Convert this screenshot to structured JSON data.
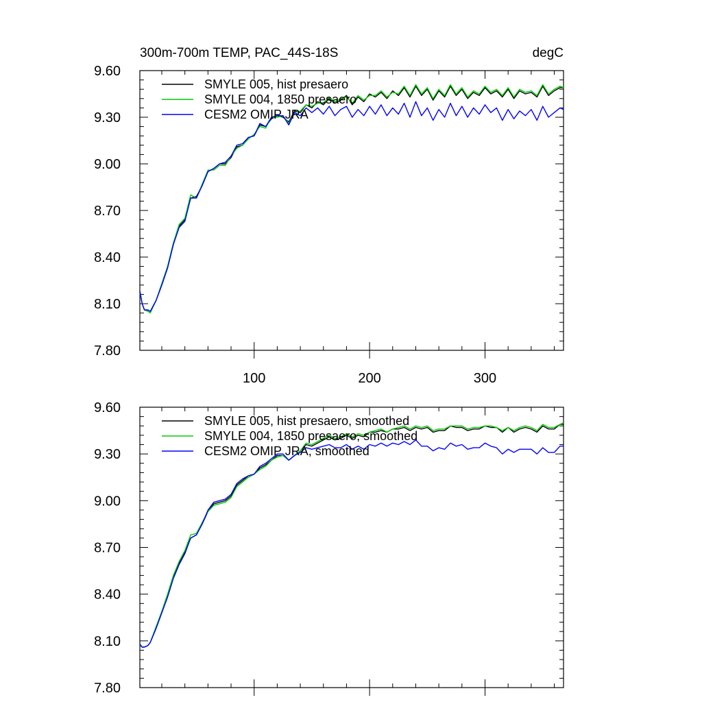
{
  "figure": {
    "title_left": "300m-700m TEMP, PAC_44S-18S",
    "title_right": "degC"
  },
  "chart_data": [
    {
      "type": "line",
      "title": "300m-700m TEMP, PAC_44S-18S",
      "units": "degC",
      "xlim": [
        1,
        368
      ],
      "ylim": [
        7.8,
        9.6
      ],
      "xticks": [
        100,
        200,
        300
      ],
      "xtick_labels": [
        "100",
        "200",
        "300"
      ],
      "yticks": [
        7.8,
        8.1,
        8.4,
        8.7,
        9.0,
        9.3,
        9.6
      ],
      "ytick_labels": [
        "7.80",
        "8.10",
        "8.40",
        "8.70",
        "9.00",
        "9.30",
        "9.60"
      ],
      "legend_position": "top-left",
      "grid": false,
      "series": [
        {
          "name": "SMYLE 005, hist presaero",
          "color": "#000000",
          "x": [
            1,
            3,
            5,
            8,
            10,
            15,
            20,
            25,
            30,
            35,
            40,
            45,
            50,
            55,
            60,
            65,
            70,
            75,
            80,
            85,
            90,
            95,
            100,
            105,
            110,
            115,
            120,
            125,
            130,
            135,
            140,
            145,
            150,
            155,
            160,
            165,
            170,
            175,
            180,
            185,
            190,
            195,
            200,
            205,
            210,
            215,
            220,
            225,
            230,
            235,
            240,
            245,
            250,
            255,
            260,
            265,
            270,
            275,
            280,
            285,
            290,
            295,
            300,
            305,
            310,
            315,
            320,
            325,
            330,
            335,
            340,
            345,
            350,
            355,
            360,
            365,
            368
          ],
          "y": [
            8.18,
            8.1,
            8.06,
            8.06,
            8.05,
            8.12,
            8.22,
            8.33,
            8.48,
            8.6,
            8.64,
            8.78,
            8.79,
            8.86,
            8.95,
            8.97,
            9.0,
            9.0,
            9.04,
            9.11,
            9.12,
            9.17,
            9.18,
            9.25,
            9.24,
            9.29,
            9.31,
            9.3,
            9.27,
            9.34,
            9.33,
            9.38,
            9.36,
            9.4,
            9.38,
            9.42,
            9.39,
            9.41,
            9.44,
            9.38,
            9.43,
            9.4,
            9.45,
            9.43,
            9.46,
            9.42,
            9.47,
            9.44,
            9.49,
            9.43,
            9.5,
            9.44,
            9.48,
            9.41,
            9.47,
            9.43,
            9.5,
            9.44,
            9.48,
            9.42,
            9.46,
            9.44,
            9.49,
            9.45,
            9.47,
            9.43,
            9.48,
            9.42,
            9.47,
            9.45,
            9.46,
            9.43,
            9.5,
            9.44,
            9.47,
            9.49,
            9.49
          ]
        },
        {
          "name": "SMYLE 004, 1850 presaero",
          "color": "#00cc00",
          "x": [
            1,
            3,
            5,
            8,
            10,
            15,
            20,
            25,
            30,
            35,
            40,
            45,
            50,
            55,
            60,
            65,
            70,
            75,
            80,
            85,
            90,
            95,
            100,
            105,
            110,
            115,
            120,
            125,
            130,
            135,
            140,
            145,
            150,
            155,
            160,
            165,
            170,
            175,
            180,
            185,
            190,
            195,
            200,
            205,
            210,
            215,
            220,
            225,
            230,
            235,
            240,
            245,
            250,
            255,
            260,
            265,
            270,
            275,
            280,
            285,
            290,
            295,
            300,
            305,
            310,
            315,
            320,
            325,
            330,
            335,
            340,
            345,
            350,
            355,
            360,
            365,
            368
          ],
          "y": [
            8.17,
            8.1,
            8.06,
            8.05,
            8.04,
            8.12,
            8.23,
            8.34,
            8.49,
            8.61,
            8.65,
            8.8,
            8.78,
            8.87,
            8.96,
            8.96,
            8.99,
            8.99,
            9.05,
            9.1,
            9.12,
            9.16,
            9.19,
            9.24,
            9.23,
            9.3,
            9.3,
            9.31,
            9.26,
            9.33,
            9.34,
            9.38,
            9.37,
            9.39,
            9.39,
            9.43,
            9.4,
            9.42,
            9.43,
            9.39,
            9.44,
            9.41,
            9.44,
            9.44,
            9.47,
            9.43,
            9.46,
            9.45,
            9.5,
            9.44,
            9.51,
            9.45,
            9.49,
            9.42,
            9.48,
            9.44,
            9.51,
            9.45,
            9.49,
            9.43,
            9.47,
            9.45,
            9.5,
            9.46,
            9.48,
            9.44,
            9.49,
            9.43,
            9.48,
            9.46,
            9.47,
            9.44,
            9.51,
            9.45,
            9.48,
            9.5,
            9.49
          ]
        },
        {
          "name": "CESM2 OMIP JRA",
          "color": "#0000ff",
          "x": [
            1,
            3,
            5,
            8,
            10,
            15,
            20,
            25,
            30,
            35,
            40,
            45,
            50,
            55,
            60,
            65,
            70,
            75,
            80,
            85,
            90,
            95,
            100,
            105,
            110,
            115,
            120,
            125,
            130,
            135,
            140,
            145,
            150,
            155,
            160,
            165,
            170,
            175,
            180,
            185,
            190,
            195,
            200,
            205,
            210,
            215,
            220,
            225,
            230,
            235,
            240,
            245,
            250,
            255,
            260,
            265,
            270,
            275,
            280,
            285,
            290,
            295,
            300,
            305,
            310,
            315,
            320,
            325,
            330,
            335,
            340,
            345,
            350,
            355,
            360,
            365,
            368
          ],
          "y": [
            8.18,
            8.1,
            8.06,
            8.06,
            8.05,
            8.12,
            8.22,
            8.33,
            8.48,
            8.59,
            8.63,
            8.78,
            8.78,
            8.86,
            8.95,
            8.97,
            9.0,
            9.01,
            9.05,
            9.12,
            9.13,
            9.17,
            9.18,
            9.26,
            9.24,
            9.3,
            9.31,
            9.31,
            9.25,
            9.33,
            9.31,
            9.36,
            9.33,
            9.36,
            9.32,
            9.37,
            9.31,
            9.35,
            9.37,
            9.3,
            9.35,
            9.31,
            9.37,
            9.32,
            9.38,
            9.31,
            9.36,
            9.32,
            9.39,
            9.3,
            9.4,
            9.31,
            9.36,
            9.28,
            9.35,
            9.3,
            9.39,
            9.31,
            9.37,
            9.3,
            9.36,
            9.32,
            9.38,
            9.33,
            9.36,
            9.28,
            9.35,
            9.29,
            9.34,
            9.31,
            9.35,
            9.28,
            9.37,
            9.3,
            9.33,
            9.36,
            9.35
          ]
        }
      ]
    },
    {
      "type": "line",
      "title": "",
      "xlim": [
        1,
        368
      ],
      "ylim": [
        7.8,
        9.6
      ],
      "xticks": [
        100,
        200,
        300
      ],
      "xtick_labels": [],
      "yticks": [
        7.8,
        8.1,
        8.4,
        8.7,
        9.0,
        9.3,
        9.6
      ],
      "ytick_labels": [
        "7.80",
        "8.10",
        "8.40",
        "8.70",
        "9.00",
        "9.30",
        "9.60"
      ],
      "legend_position": "top-left",
      "grid": false,
      "series": [
        {
          "name": "SMYLE 005, hist presaero, smoothed",
          "color": "#000000",
          "x": [
            1,
            3,
            5,
            8,
            10,
            15,
            20,
            25,
            30,
            35,
            40,
            45,
            50,
            55,
            60,
            65,
            70,
            75,
            80,
            85,
            90,
            95,
            100,
            105,
            110,
            115,
            120,
            125,
            130,
            135,
            140,
            145,
            150,
            155,
            160,
            165,
            170,
            175,
            180,
            185,
            190,
            195,
            200,
            205,
            210,
            215,
            220,
            225,
            230,
            235,
            240,
            245,
            250,
            255,
            260,
            265,
            270,
            275,
            280,
            285,
            290,
            295,
            300,
            305,
            310,
            315,
            320,
            325,
            330,
            335,
            340,
            345,
            350,
            355,
            360,
            365,
            368
          ],
          "y": [
            8.07,
            8.06,
            8.06,
            8.07,
            8.09,
            8.18,
            8.28,
            8.39,
            8.51,
            8.6,
            8.67,
            8.76,
            8.78,
            8.85,
            8.93,
            8.98,
            8.99,
            9.0,
            9.03,
            9.1,
            9.13,
            9.16,
            9.17,
            9.21,
            9.23,
            9.26,
            9.29,
            9.29,
            9.26,
            9.29,
            9.32,
            9.36,
            9.35,
            9.37,
            9.39,
            9.41,
            9.39,
            9.4,
            9.42,
            9.4,
            9.42,
            9.41,
            9.44,
            9.44,
            9.45,
            9.44,
            9.46,
            9.46,
            9.47,
            9.45,
            9.47,
            9.46,
            9.47,
            9.44,
            9.45,
            9.45,
            9.48,
            9.47,
            9.47,
            9.45,
            9.46,
            9.46,
            9.48,
            9.47,
            9.47,
            9.44,
            9.47,
            9.44,
            9.46,
            9.47,
            9.46,
            9.44,
            9.48,
            9.46,
            9.46,
            9.49,
            9.49
          ]
        },
        {
          "name": "SMYLE 004, 1850 presaero, smoothed",
          "color": "#00cc00",
          "x": [
            1,
            3,
            5,
            8,
            10,
            15,
            20,
            25,
            30,
            35,
            40,
            45,
            50,
            55,
            60,
            65,
            70,
            75,
            80,
            85,
            90,
            95,
            100,
            105,
            110,
            115,
            120,
            125,
            130,
            135,
            140,
            145,
            150,
            155,
            160,
            165,
            170,
            175,
            180,
            185,
            190,
            195,
            200,
            205,
            210,
            215,
            220,
            225,
            230,
            235,
            240,
            245,
            250,
            255,
            260,
            265,
            270,
            275,
            280,
            285,
            290,
            295,
            300,
            305,
            310,
            315,
            320,
            325,
            330,
            335,
            340,
            345,
            350,
            355,
            360,
            365,
            368
          ],
          "y": [
            8.07,
            8.06,
            8.06,
            8.07,
            8.09,
            8.19,
            8.29,
            8.4,
            8.52,
            8.61,
            8.68,
            8.78,
            8.79,
            8.86,
            8.93,
            8.97,
            8.98,
            8.99,
            9.02,
            9.09,
            9.12,
            9.15,
            9.17,
            9.2,
            9.22,
            9.26,
            9.28,
            9.29,
            9.26,
            9.29,
            9.32,
            9.37,
            9.36,
            9.38,
            9.4,
            9.42,
            9.4,
            9.41,
            9.43,
            9.41,
            9.43,
            9.42,
            9.44,
            9.45,
            9.46,
            9.44,
            9.46,
            9.47,
            9.48,
            9.46,
            9.48,
            9.47,
            9.48,
            9.45,
            9.46,
            9.46,
            9.48,
            9.48,
            9.48,
            9.46,
            9.47,
            9.47,
            9.48,
            9.48,
            9.47,
            9.45,
            9.47,
            9.45,
            9.47,
            9.48,
            9.47,
            9.45,
            9.49,
            9.47,
            9.47,
            9.49,
            9.5
          ]
        },
        {
          "name": "CESM2 OMIP JRA, smoothed",
          "color": "#0000ff",
          "x": [
            1,
            3,
            5,
            8,
            10,
            15,
            20,
            25,
            30,
            35,
            40,
            45,
            50,
            55,
            60,
            65,
            70,
            75,
            80,
            85,
            90,
            95,
            100,
            105,
            110,
            115,
            120,
            125,
            130,
            135,
            140,
            145,
            150,
            155,
            160,
            165,
            170,
            175,
            180,
            185,
            190,
            195,
            200,
            205,
            210,
            215,
            220,
            225,
            230,
            235,
            240,
            245,
            250,
            255,
            260,
            265,
            270,
            275,
            280,
            285,
            290,
            295,
            300,
            305,
            310,
            315,
            320,
            325,
            330,
            335,
            340,
            345,
            350,
            355,
            360,
            365,
            368
          ],
          "y": [
            8.08,
            8.06,
            8.06,
            8.07,
            8.09,
            8.18,
            8.28,
            8.38,
            8.5,
            8.59,
            8.66,
            8.76,
            8.78,
            8.85,
            8.94,
            8.99,
            9.0,
            9.01,
            9.04,
            9.11,
            9.14,
            9.16,
            9.17,
            9.22,
            9.24,
            9.27,
            9.3,
            9.3,
            9.26,
            9.29,
            9.31,
            9.34,
            9.33,
            9.34,
            9.35,
            9.36,
            9.34,
            9.34,
            9.36,
            9.33,
            9.35,
            9.33,
            9.36,
            9.35,
            9.37,
            9.35,
            9.37,
            9.36,
            9.38,
            9.36,
            9.39,
            9.35,
            9.35,
            9.32,
            9.34,
            9.33,
            9.37,
            9.35,
            9.36,
            9.33,
            9.34,
            9.34,
            9.37,
            9.35,
            9.34,
            9.3,
            9.33,
            9.31,
            9.33,
            9.33,
            9.33,
            9.3,
            9.34,
            9.31,
            9.31,
            9.35,
            9.35
          ]
        }
      ]
    }
  ]
}
